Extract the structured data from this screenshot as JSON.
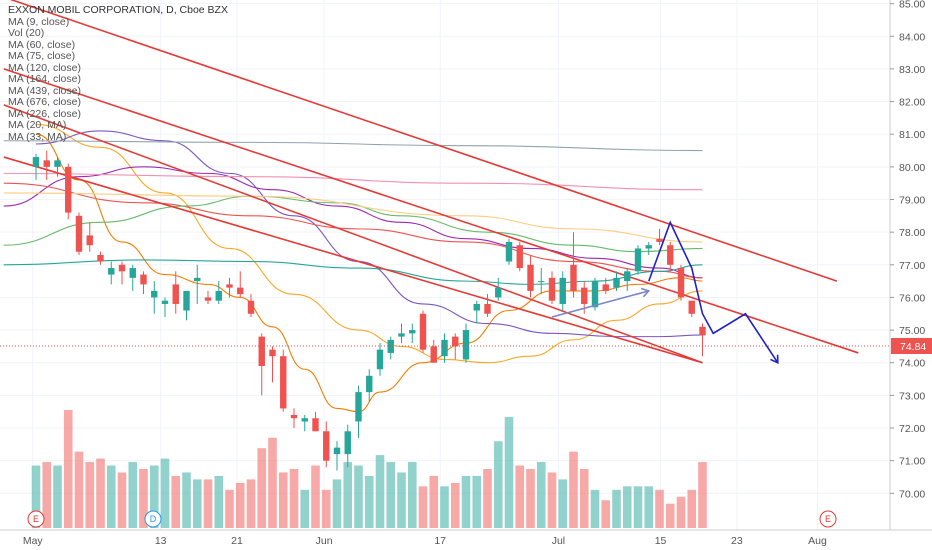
{
  "chart_data": {
    "type": "candlestick",
    "title": "EXXON MOBIL CORPORATION, D, Cboe BZX",
    "indicators": [
      "MA (9, close)",
      "Vol (20)",
      "MA (60, close)",
      "MA (75, close)",
      "MA (120, close)",
      "MA (164, close)",
      "MA (439, close)",
      "MA (676, close)",
      "MA (226, close)",
      "MA (20, MA)",
      "MA (33, MA)"
    ],
    "y_ticks": [
      "85.00",
      "84.00",
      "83.00",
      "82.00",
      "81.00",
      "80.00",
      "79.00",
      "78.00",
      "77.00",
      "76.00",
      "75.00",
      "74.00",
      "73.00",
      "72.00",
      "71.00",
      "70.00"
    ],
    "ylim": [
      69.4,
      85.1
    ],
    "x_ticks": [
      "May",
      "13",
      "21",
      "Jun",
      "17",
      "Jul",
      "15",
      "23",
      "Aug"
    ],
    "last_price": "74.84",
    "events": [
      {
        "label": "E",
        "color": "#e53935"
      },
      {
        "label": "D",
        "color": "#2196f3"
      },
      {
        "label": "E",
        "color": "#e53935"
      }
    ],
    "candles": [
      {
        "o": 80.0,
        "h": 80.4,
        "l": 79.6,
        "c": 80.3
      },
      {
        "o": 80.2,
        "h": 80.5,
        "l": 79.6,
        "c": 80.0
      },
      {
        "o": 80.0,
        "h": 80.3,
        "l": 79.7,
        "c": 80.2
      },
      {
        "o": 80.0,
        "h": 80.1,
        "l": 78.4,
        "c": 78.6
      },
      {
        "o": 78.5,
        "h": 78.6,
        "l": 77.3,
        "c": 77.4
      },
      {
        "o": 77.9,
        "h": 78.3,
        "l": 77.4,
        "c": 77.6
      },
      {
        "o": 77.3,
        "h": 77.4,
        "l": 77.0,
        "c": 77.1
      },
      {
        "o": 76.7,
        "h": 77.1,
        "l": 76.4,
        "c": 76.9
      },
      {
        "o": 77.0,
        "h": 77.1,
        "l": 76.4,
        "c": 76.8
      },
      {
        "o": 76.6,
        "h": 77.0,
        "l": 76.2,
        "c": 76.9
      },
      {
        "o": 76.7,
        "h": 76.8,
        "l": 76.1,
        "c": 76.4
      },
      {
        "o": 76.0,
        "h": 76.5,
        "l": 75.5,
        "c": 76.2
      },
      {
        "o": 75.8,
        "h": 76.0,
        "l": 75.4,
        "c": 75.9
      },
      {
        "o": 76.4,
        "h": 76.8,
        "l": 75.5,
        "c": 75.8
      },
      {
        "o": 75.6,
        "h": 76.2,
        "l": 75.3,
        "c": 76.2
      },
      {
        "o": 76.5,
        "h": 77.0,
        "l": 75.8,
        "c": 76.6
      },
      {
        "o": 76.0,
        "h": 76.2,
        "l": 75.8,
        "c": 75.9
      },
      {
        "o": 75.9,
        "h": 76.5,
        "l": 75.8,
        "c": 76.2
      },
      {
        "o": 76.4,
        "h": 76.6,
        "l": 76.0,
        "c": 76.3
      },
      {
        "o": 76.3,
        "h": 76.8,
        "l": 76.0,
        "c": 76.1
      },
      {
        "o": 75.9,
        "h": 76.1,
        "l": 75.4,
        "c": 75.5
      },
      {
        "o": 74.8,
        "h": 74.9,
        "l": 73.0,
        "c": 73.9
      },
      {
        "o": 74.4,
        "h": 74.5,
        "l": 73.4,
        "c": 74.2
      },
      {
        "o": 74.2,
        "h": 74.4,
        "l": 72.5,
        "c": 72.6
      },
      {
        "o": 72.4,
        "h": 72.6,
        "l": 72.0,
        "c": 72.3
      },
      {
        "o": 72.2,
        "h": 72.4,
        "l": 71.9,
        "c": 72.3
      },
      {
        "o": 72.3,
        "h": 72.5,
        "l": 71.9,
        "c": 71.9
      },
      {
        "o": 71.9,
        "h": 72.2,
        "l": 70.8,
        "c": 71.0
      },
      {
        "o": 71.2,
        "h": 71.6,
        "l": 70.7,
        "c": 71.4
      },
      {
        "o": 71.2,
        "h": 72.1,
        "l": 70.8,
        "c": 71.9
      },
      {
        "o": 72.2,
        "h": 73.3,
        "l": 71.7,
        "c": 73.1
      },
      {
        "o": 73.1,
        "h": 73.8,
        "l": 72.8,
        "c": 73.6
      },
      {
        "o": 73.8,
        "h": 74.6,
        "l": 73.6,
        "c": 74.4
      },
      {
        "o": 74.3,
        "h": 74.8,
        "l": 74.1,
        "c": 74.7
      },
      {
        "o": 74.8,
        "h": 75.2,
        "l": 74.6,
        "c": 74.9
      },
      {
        "o": 74.9,
        "h": 75.2,
        "l": 74.6,
        "c": 75.0
      },
      {
        "o": 75.5,
        "h": 75.6,
        "l": 74.3,
        "c": 74.4
      },
      {
        "o": 74.5,
        "h": 74.7,
        "l": 74.0,
        "c": 74.0
      },
      {
        "o": 74.2,
        "h": 74.9,
        "l": 74.0,
        "c": 74.7
      },
      {
        "o": 74.8,
        "h": 74.9,
        "l": 74.1,
        "c": 74.5
      },
      {
        "o": 74.1,
        "h": 75.2,
        "l": 74.0,
        "c": 75.0
      },
      {
        "o": 75.6,
        "h": 75.9,
        "l": 75.2,
        "c": 75.8
      },
      {
        "o": 75.8,
        "h": 76.1,
        "l": 75.4,
        "c": 75.5
      },
      {
        "o": 76.0,
        "h": 76.6,
        "l": 75.9,
        "c": 76.3
      },
      {
        "o": 77.1,
        "h": 77.8,
        "l": 77.0,
        "c": 77.7
      },
      {
        "o": 77.6,
        "h": 77.7,
        "l": 76.8,
        "c": 76.9
      },
      {
        "o": 77.0,
        "h": 77.3,
        "l": 76.0,
        "c": 76.2
      },
      {
        "o": 76.5,
        "h": 76.9,
        "l": 76.1,
        "c": 76.5
      },
      {
        "o": 76.6,
        "h": 76.8,
        "l": 75.8,
        "c": 75.9
      },
      {
        "o": 75.8,
        "h": 76.8,
        "l": 75.6,
        "c": 76.6
      },
      {
        "o": 77.0,
        "h": 78.0,
        "l": 76.0,
        "c": 76.2
      },
      {
        "o": 76.3,
        "h": 76.5,
        "l": 75.5,
        "c": 75.8
      },
      {
        "o": 75.7,
        "h": 76.6,
        "l": 75.6,
        "c": 76.5
      },
      {
        "o": 76.4,
        "h": 76.6,
        "l": 76.1,
        "c": 76.2
      },
      {
        "o": 76.3,
        "h": 76.8,
        "l": 76.2,
        "c": 76.6
      },
      {
        "o": 76.5,
        "h": 76.9,
        "l": 76.2,
        "c": 76.8
      },
      {
        "o": 76.8,
        "h": 77.6,
        "l": 76.7,
        "c": 77.5
      },
      {
        "o": 77.5,
        "h": 77.7,
        "l": 77.3,
        "c": 77.6
      },
      {
        "o": 77.8,
        "h": 78.1,
        "l": 77.6,
        "c": 77.7
      },
      {
        "o": 77.6,
        "h": 77.7,
        "l": 76.8,
        "c": 77.0
      },
      {
        "o": 76.9,
        "h": 77.0,
        "l": 75.9,
        "c": 76.0
      },
      {
        "o": 75.9,
        "h": 75.9,
        "l": 75.4,
        "c": 75.5
      },
      {
        "o": 75.1,
        "h": 75.2,
        "l": 74.2,
        "c": 74.84
      }
    ],
    "volumes": [
      0.9,
      0.95,
      0.9,
      1.7,
      1.1,
      0.95,
      1.0,
      0.9,
      0.8,
      0.95,
      0.85,
      0.9,
      1.0,
      0.75,
      0.8,
      0.7,
      0.7,
      0.75,
      0.55,
      0.65,
      0.7,
      1.15,
      1.3,
      0.8,
      0.85,
      0.55,
      0.9,
      0.55,
      0.7,
      0.95,
      0.9,
      0.75,
      1.05,
      0.95,
      0.8,
      0.95,
      0.6,
      0.75,
      0.6,
      0.65,
      0.75,
      0.75,
      0.85,
      1.25,
      1.6,
      0.9,
      0.85,
      0.95,
      0.8,
      0.7,
      1.1,
      0.85,
      0.55,
      0.4,
      0.55,
      0.6,
      0.6,
      0.6,
      0.55,
      0.35,
      0.45,
      0.55,
      0.95
    ],
    "moving_averages": [
      {
        "color": "#f57c00",
        "points": [
          [
            0,
            81.0
          ],
          [
            4,
            79.6
          ],
          [
            8,
            77.7
          ],
          [
            12,
            76.7
          ],
          [
            16,
            76.4
          ],
          [
            19,
            76.0
          ],
          [
            22,
            75.1
          ],
          [
            25,
            73.8
          ],
          [
            28,
            72.6
          ],
          [
            30,
            72.5
          ],
          [
            32,
            73.1
          ],
          [
            36,
            74.0
          ],
          [
            40,
            74.6
          ],
          [
            44,
            75.6
          ],
          [
            48,
            76.2
          ],
          [
            52,
            76.2
          ],
          [
            56,
            76.4
          ],
          [
            60,
            76.6
          ],
          [
            62,
            76.5
          ]
        ]
      },
      {
        "color": "#f9a825",
        "points": [
          [
            0,
            81.3
          ],
          [
            6,
            80.6
          ],
          [
            12,
            79.2
          ],
          [
            18,
            77.5
          ],
          [
            24,
            76.1
          ],
          [
            30,
            75.0
          ],
          [
            34,
            74.5
          ],
          [
            38,
            74.1
          ],
          [
            42,
            74.0
          ],
          [
            46,
            74.2
          ],
          [
            50,
            74.7
          ],
          [
            54,
            75.3
          ],
          [
            58,
            75.8
          ],
          [
            62,
            76.2
          ]
        ]
      },
      {
        "color": "#7e57c2",
        "points": [
          [
            0,
            80.7
          ],
          [
            6,
            81.1
          ],
          [
            12,
            80.8
          ],
          [
            18,
            79.8
          ],
          [
            24,
            78.5
          ],
          [
            30,
            77.1
          ],
          [
            36,
            75.8
          ],
          [
            42,
            75.2
          ],
          [
            48,
            74.9
          ],
          [
            54,
            74.8
          ],
          [
            58,
            74.8
          ],
          [
            62,
            74.85
          ]
        ]
      },
      {
        "color": "#9c27b0",
        "points": [
          [
            -3,
            78.8
          ],
          [
            4,
            79.7
          ],
          [
            10,
            80.0
          ],
          [
            16,
            79.8
          ],
          [
            22,
            79.3
          ],
          [
            28,
            78.8
          ],
          [
            34,
            78.3
          ],
          [
            40,
            77.8
          ],
          [
            46,
            77.5
          ],
          [
            52,
            77.2
          ],
          [
            58,
            76.9
          ],
          [
            62,
            76.6
          ]
        ]
      },
      {
        "color": "#ef5350",
        "points": [
          [
            -3,
            79.5
          ],
          [
            10,
            78.9
          ],
          [
            20,
            78.5
          ],
          [
            30,
            78.1
          ],
          [
            40,
            77.7
          ],
          [
            50,
            77.1
          ],
          [
            58,
            76.8
          ],
          [
            62,
            76.6
          ]
        ]
      },
      {
        "color": "#66bb6a",
        "points": [
          [
            -3,
            77.6
          ],
          [
            6,
            78.3
          ],
          [
            14,
            78.8
          ],
          [
            20,
            79.1
          ],
          [
            28,
            78.9
          ],
          [
            34,
            78.5
          ],
          [
            42,
            78.0
          ],
          [
            50,
            77.6
          ],
          [
            56,
            77.4
          ],
          [
            62,
            77.5
          ]
        ]
      },
      {
        "color": "#26a69a",
        "points": [
          [
            -3,
            77.0
          ],
          [
            10,
            77.15
          ],
          [
            20,
            77.1
          ],
          [
            30,
            76.9
          ],
          [
            40,
            76.5
          ],
          [
            46,
            76.4
          ],
          [
            52,
            76.5
          ],
          [
            58,
            76.8
          ],
          [
            62,
            77.0
          ]
        ]
      },
      {
        "color": "#90a4ae",
        "points": [
          [
            -3,
            80.8
          ],
          [
            20,
            80.75
          ],
          [
            40,
            80.65
          ],
          [
            62,
            80.5
          ]
        ]
      },
      {
        "color": "#f48fb1",
        "points": [
          [
            -3,
            79.8
          ],
          [
            20,
            79.7
          ],
          [
            40,
            79.5
          ],
          [
            62,
            79.3
          ]
        ]
      },
      {
        "color": "#ffcc80",
        "points": [
          [
            -3,
            79.2
          ],
          [
            20,
            79.1
          ],
          [
            40,
            78.5
          ],
          [
            50,
            78.1
          ],
          [
            62,
            77.7
          ]
        ]
      }
    ],
    "trend_lines": [
      {
        "color": "#e53935",
        "from": [
          -3,
          85.2
        ],
        "to": [
          74.5,
          76.5
        ]
      },
      {
        "color": "#e53935",
        "from": [
          -3,
          83.0
        ],
        "to": [
          76.5,
          74.3
        ]
      },
      {
        "color": "#e53935",
        "from": [
          -3,
          81.9
        ],
        "to": [
          62,
          74.0
        ]
      },
      {
        "color": "#e53935",
        "from": [
          -3,
          80.3
        ],
        "to": [
          62,
          74.0
        ]
      }
    ],
    "arrows": [
      {
        "color": "#7986cb",
        "points": [
          [
            48,
            75.4
          ],
          [
            57,
            76.2
          ]
        ]
      },
      {
        "color": "#2020c8",
        "points": [
          [
            57,
            76.5
          ],
          [
            59,
            78.3
          ],
          [
            61,
            76.9
          ],
          [
            62,
            75.5
          ],
          [
            63,
            74.9
          ],
          [
            66,
            75.5
          ],
          [
            69,
            74.0
          ]
        ]
      }
    ]
  }
}
